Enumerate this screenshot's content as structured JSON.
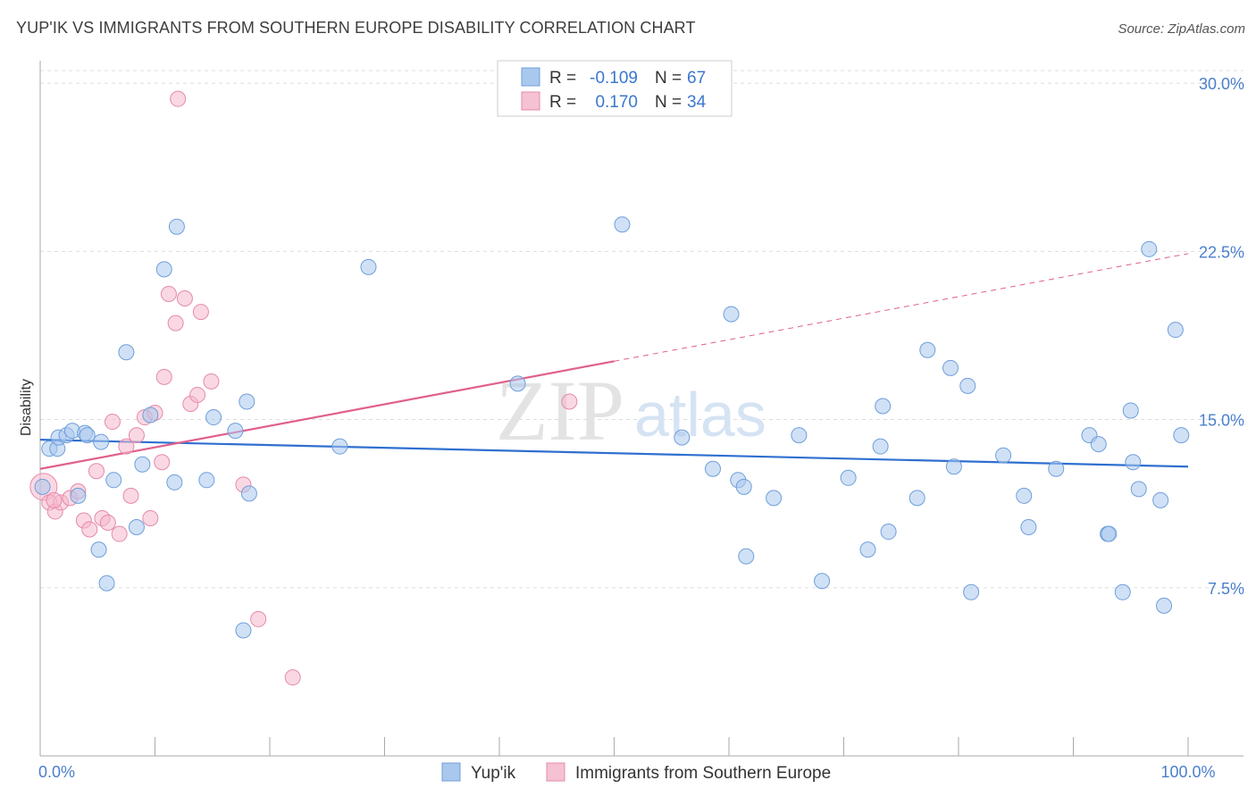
{
  "title": "YUP'IK VS IMMIGRANTS FROM SOUTHERN EUROPE DISABILITY CORRELATION CHART",
  "source": "Source: ZipAtlas.com",
  "watermark": {
    "zip": "ZIP",
    "atlas": "atlas"
  },
  "colors": {
    "blue_fill": "#a9c8ee",
    "blue_stroke": "#6f9fd9",
    "blue_line": "#2f6fd0",
    "pink_fill": "#f5b8cc",
    "pink_stroke": "#e58aaa",
    "pink_line": "#e0608e",
    "grid": "#dddddd",
    "axis": "#999999",
    "tick_text": "#4a7fcc"
  },
  "legend": {
    "r_label": "R =",
    "n_label": "N =",
    "rows": [
      {
        "series": "Yup'ik",
        "r": "-0.109",
        "n": "67"
      },
      {
        "series": "Immigrants from Southern Europe",
        "r": "0.170",
        "n": "34"
      }
    ]
  },
  "chart_data": {
    "type": "scatter",
    "ylabel": "Disability",
    "xlabel": "",
    "xlim": [
      0,
      100
    ],
    "ylim": [
      0,
      31
    ],
    "x_tick_labels": [
      {
        "value": 0,
        "label": "0.0%"
      },
      {
        "value": 100,
        "label": "100.0%"
      }
    ],
    "x_tick_marks": [
      0,
      10,
      20,
      30,
      40,
      50,
      60,
      70,
      80,
      90,
      100
    ],
    "y_ticks": [
      {
        "value": 7.5,
        "label": "7.5%"
      },
      {
        "value": 15.0,
        "label": "15.0%"
      },
      {
        "value": 22.5,
        "label": "22.5%"
      },
      {
        "value": 30.0,
        "label": "30.0%"
      }
    ],
    "series": [
      {
        "name": "Yup'ik",
        "color": "blue",
        "r": -0.109,
        "n": 67,
        "trend": {
          "x0": 0,
          "y0": 14.1,
          "x1": 100,
          "y1": 12.9,
          "solid_to": 100
        },
        "points": [
          [
            0.2,
            12.0
          ],
          [
            0.8,
            13.7
          ],
          [
            1.5,
            13.7
          ],
          [
            1.6,
            14.2
          ],
          [
            2.3,
            14.3
          ],
          [
            2.8,
            14.5
          ],
          [
            3.3,
            11.6
          ],
          [
            3.9,
            14.4
          ],
          [
            4.1,
            14.3
          ],
          [
            5.1,
            9.2
          ],
          [
            5.3,
            14.0
          ],
          [
            5.8,
            7.7
          ],
          [
            6.4,
            12.3
          ],
          [
            7.5,
            18.0
          ],
          [
            8.4,
            10.2
          ],
          [
            8.9,
            13.0
          ],
          [
            9.6,
            15.2
          ],
          [
            10.8,
            21.7
          ],
          [
            11.7,
            12.2
          ],
          [
            11.9,
            23.6
          ],
          [
            14.5,
            12.3
          ],
          [
            15.1,
            15.1
          ],
          [
            17.7,
            5.6
          ],
          [
            17.0,
            14.5
          ],
          [
            18.0,
            15.8
          ],
          [
            18.2,
            11.7
          ],
          [
            26.1,
            13.8
          ],
          [
            28.6,
            21.8
          ],
          [
            41.6,
            16.6
          ],
          [
            50.7,
            23.7
          ],
          [
            55.9,
            14.2
          ],
          [
            58.6,
            12.8
          ],
          [
            60.2,
            19.7
          ],
          [
            60.8,
            12.3
          ],
          [
            61.3,
            12.0
          ],
          [
            61.5,
            8.9
          ],
          [
            63.9,
            11.5
          ],
          [
            66.1,
            14.3
          ],
          [
            68.1,
            7.8
          ],
          [
            70.4,
            12.4
          ],
          [
            72.1,
            9.2
          ],
          [
            73.2,
            13.8
          ],
          [
            73.4,
            15.6
          ],
          [
            73.9,
            10.0
          ],
          [
            76.4,
            11.5
          ],
          [
            77.3,
            18.1
          ],
          [
            79.3,
            17.3
          ],
          [
            79.6,
            12.9
          ],
          [
            80.8,
            16.5
          ],
          [
            81.1,
            7.3
          ],
          [
            83.9,
            13.4
          ],
          [
            85.7,
            11.6
          ],
          [
            86.1,
            10.2
          ],
          [
            88.5,
            12.8
          ],
          [
            91.4,
            14.3
          ],
          [
            92.2,
            13.9
          ],
          [
            93.0,
            9.9
          ],
          [
            93.1,
            9.9
          ],
          [
            94.3,
            7.3
          ],
          [
            95.0,
            15.4
          ],
          [
            95.2,
            13.1
          ],
          [
            95.7,
            11.9
          ],
          [
            96.6,
            22.6
          ],
          [
            97.6,
            11.4
          ],
          [
            97.9,
            6.7
          ],
          [
            98.9,
            19.0
          ],
          [
            99.4,
            14.3
          ]
        ]
      },
      {
        "name": "Immigrants from Southern Europe",
        "color": "pink",
        "r": 0.17,
        "n": 34,
        "trend": {
          "x0": 0,
          "y0": 12.8,
          "x1": 100,
          "y1": 22.4,
          "solid_to": 50
        },
        "points": [
          [
            0.3,
            12.0,
            "big"
          ],
          [
            0.8,
            11.3
          ],
          [
            1.3,
            10.9
          ],
          [
            1.8,
            11.3
          ],
          [
            2.6,
            11.5
          ],
          [
            3.3,
            11.8
          ],
          [
            3.8,
            10.5
          ],
          [
            4.3,
            10.1
          ],
          [
            4.9,
            12.7
          ],
          [
            5.4,
            10.6
          ],
          [
            5.9,
            10.4
          ],
          [
            6.3,
            14.9
          ],
          [
            6.9,
            9.9
          ],
          [
            7.5,
            13.8
          ],
          [
            7.9,
            11.6
          ],
          [
            8.4,
            14.3
          ],
          [
            9.1,
            15.1
          ],
          [
            9.6,
            10.6
          ],
          [
            10.0,
            15.3
          ],
          [
            10.6,
            13.1
          ],
          [
            10.8,
            16.9
          ],
          [
            11.2,
            20.6
          ],
          [
            11.8,
            19.3
          ],
          [
            12.0,
            29.3
          ],
          [
            12.6,
            20.4
          ],
          [
            13.1,
            15.7
          ],
          [
            13.7,
            16.1
          ],
          [
            14.0,
            19.8
          ],
          [
            14.9,
            16.7
          ],
          [
            17.7,
            12.1
          ],
          [
            19.0,
            6.1
          ],
          [
            22.0,
            3.5
          ],
          [
            46.1,
            15.8
          ],
          [
            1.2,
            11.4
          ]
        ]
      }
    ]
  }
}
